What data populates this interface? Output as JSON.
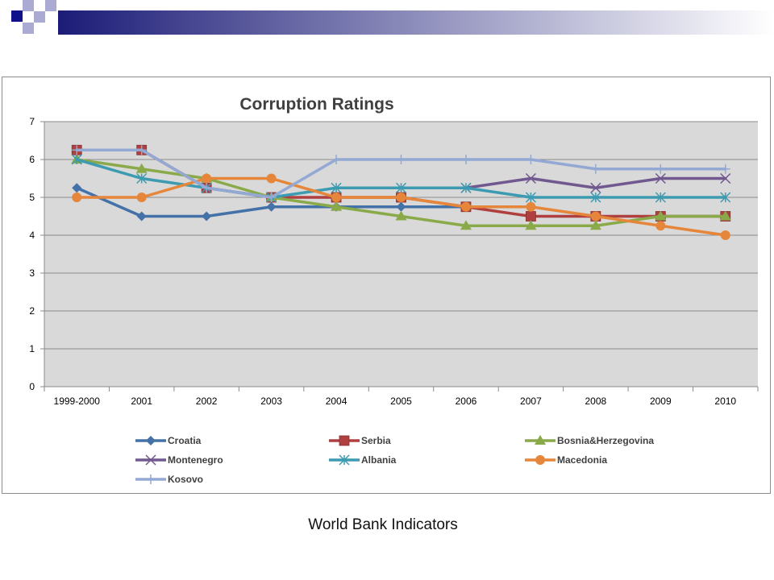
{
  "slide": {
    "caption": "World Bank Indicators",
    "colors": {
      "navy_square": "#10108a",
      "band_start": "#1c1c78",
      "band_end": "#ffffff",
      "light_square": "#aaaad2"
    }
  },
  "chart_data": {
    "type": "line",
    "title": "Corruption Ratings",
    "xlabel": "",
    "ylabel": "",
    "categories": [
      "1999-2000",
      "2001",
      "2002",
      "2003",
      "2004",
      "2005",
      "2006",
      "2007",
      "2008",
      "2009",
      "2010"
    ],
    "ylim": [
      0,
      7
    ],
    "yticks": [
      0,
      1,
      2,
      3,
      4,
      5,
      6,
      7
    ],
    "grid": true,
    "plot_background": "#d9d9d9",
    "legend_position": "bottom",
    "series": [
      {
        "name": "Croatia",
        "color": "#4472a8",
        "marker": "diamond",
        "values": [
          5.25,
          4.5,
          4.5,
          4.75,
          4.75,
          4.75,
          4.75,
          null,
          null,
          null,
          null
        ]
      },
      {
        "name": "Serbia",
        "color": "#b04040",
        "marker": "square",
        "values": [
          6.25,
          6.25,
          5.25,
          5.0,
          5.0,
          5.0,
          4.75,
          4.5,
          4.5,
          4.5,
          4.5
        ]
      },
      {
        "name": "Bosnia&Herzegovina",
        "color": "#8aaa4a",
        "marker": "triangle",
        "values": [
          6.0,
          5.75,
          5.5,
          5.0,
          4.75,
          4.5,
          4.25,
          4.25,
          4.25,
          4.5,
          4.5
        ]
      },
      {
        "name": "Montenegro",
        "color": "#71588f",
        "marker": "x",
        "values": [
          null,
          null,
          null,
          null,
          null,
          null,
          5.25,
          5.5,
          5.25,
          5.5,
          5.5
        ]
      },
      {
        "name": "Albania",
        "color": "#3c9bb0",
        "marker": "star",
        "values": [
          6.0,
          5.5,
          5.25,
          5.0,
          5.25,
          5.25,
          5.25,
          5.0,
          5.0,
          5.0,
          5.0
        ]
      },
      {
        "name": "Macedonia",
        "color": "#e6863a",
        "marker": "circle",
        "values": [
          5.0,
          5.0,
          5.5,
          5.5,
          5.0,
          5.0,
          4.75,
          4.75,
          4.5,
          4.25,
          4.0
        ]
      },
      {
        "name": "Kosovo",
        "color": "#93a9d3",
        "marker": "plus",
        "values": [
          6.25,
          6.25,
          5.25,
          5.0,
          6.0,
          6.0,
          6.0,
          6.0,
          5.75,
          5.75,
          5.75
        ]
      }
    ]
  }
}
